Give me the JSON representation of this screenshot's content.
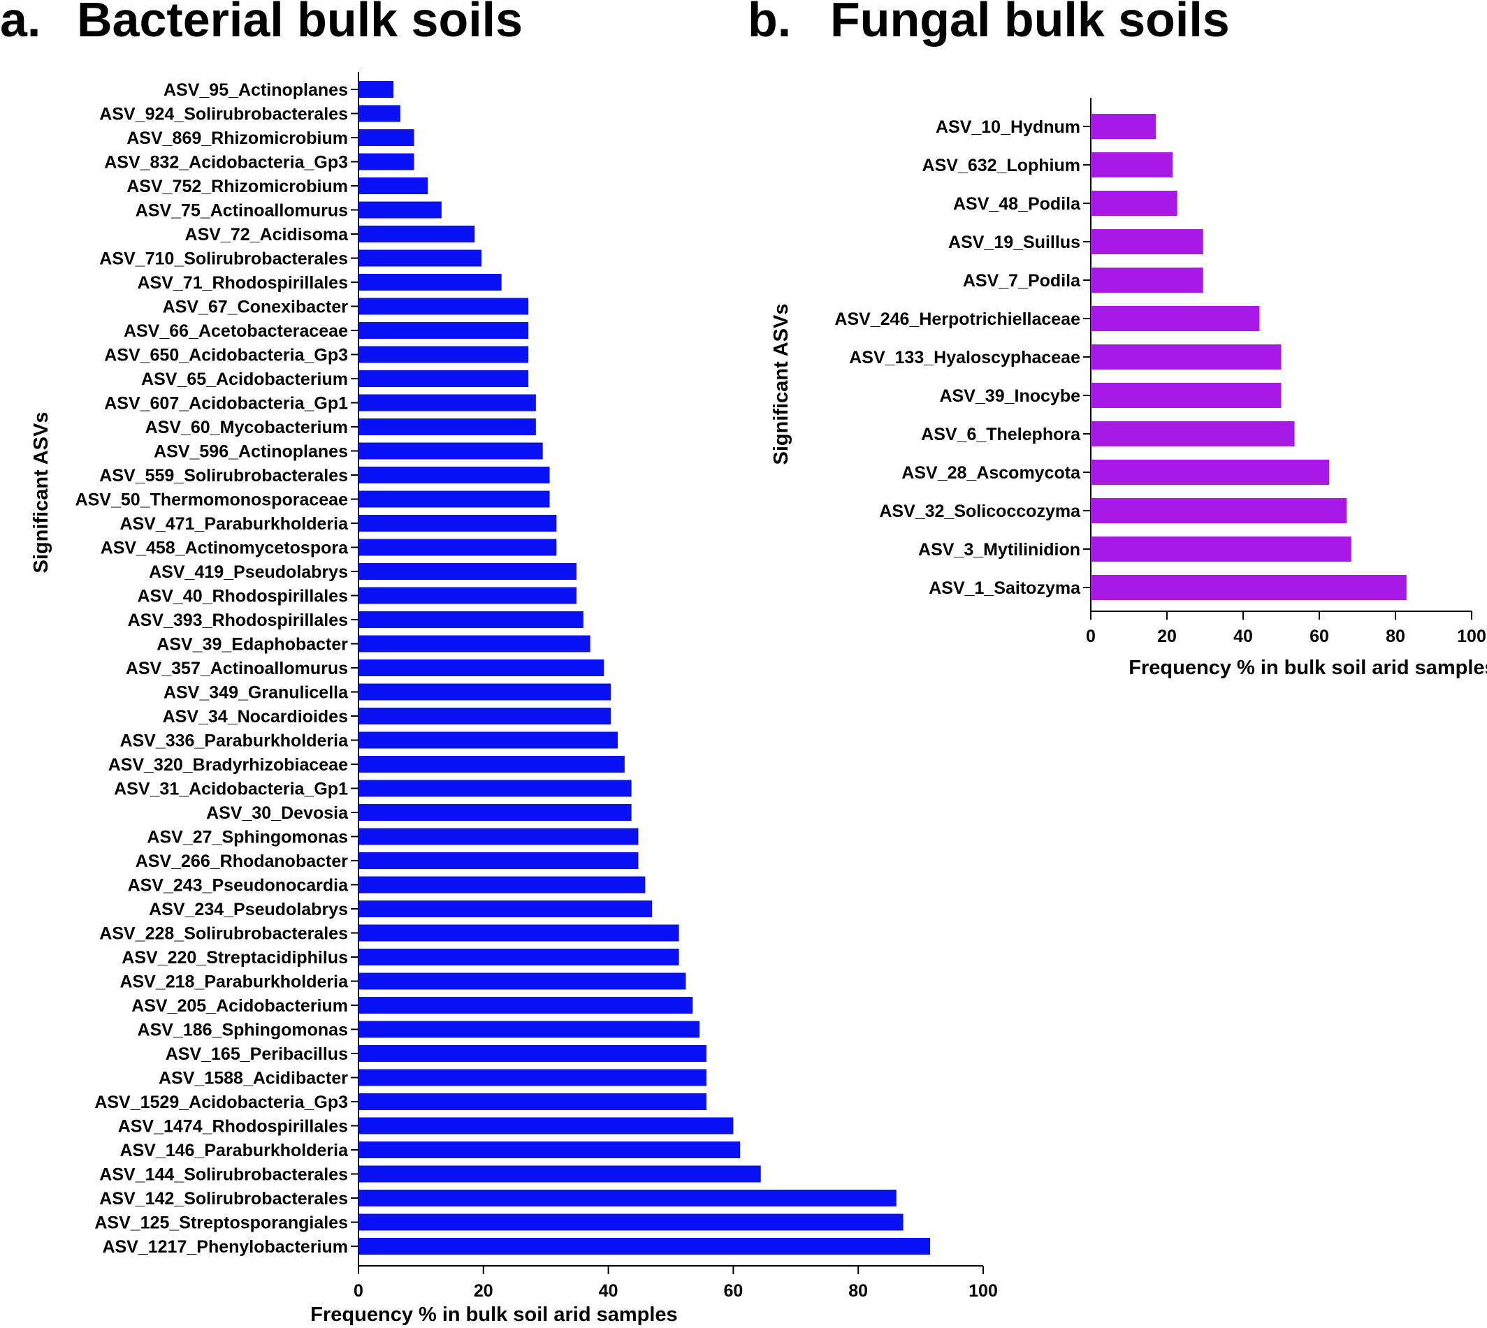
{
  "chart_data": [
    {
      "type": "bar",
      "orientation": "horizontal",
      "panel_label": "a.",
      "title": "Bacterial bulk soils",
      "xlabel": "Frequency % in bulk soil arid samples",
      "ylabel": "Significant  ASVs",
      "xlim": [
        0,
        100
      ],
      "xticks": [
        "0",
        "20",
        "40",
        "60",
        "80",
        "100"
      ],
      "color": "#0a12f5",
      "grid": false,
      "categories": [
        "ASV_95_Actinoplanes",
        "ASV_924_Solirubrobacterales",
        "ASV_869_Rhizomicrobium",
        "ASV_832_Acidobacteria_Gp3",
        "ASV_752_Rhizomicrobium",
        "ASV_75_Actinoallomurus",
        "ASV_72_Acidisoma",
        "ASV_710_Solirubrobacterales",
        "ASV_71_Rhodospirillales",
        "ASV_67_Conexibacter",
        "ASV_66_Acetobacteraceae",
        "ASV_650_Acidobacteria_Gp3",
        "ASV_65_Acidobacterium",
        "ASV_607_Acidobacteria_Gp1",
        "ASV_60_Mycobacterium",
        "ASV_596_Actinoplanes",
        "ASV_559_Solirubrobacterales",
        "ASV_50_Thermomonosporaceae",
        "ASV_471_Paraburkholderia",
        "ASV_458_Actinomycetospora",
        "ASV_419_Pseudolabrys",
        "ASV_40_Rhodospirillales",
        "ASV_393_Rhodospirillales",
        "ASV_39_Edaphobacter",
        "ASV_357_Actinoallomurus",
        "ASV_349_Granulicella",
        "ASV_34_Nocardioides",
        "ASV_336_Paraburkholderia",
        "ASV_320_Bradyrhizobiaceae",
        "ASV_31_Acidobacteria_Gp1",
        "ASV_30_Devosia",
        "ASV_27_Sphingomonas",
        "ASV_266_Rhodanobacter",
        "ASV_243_Pseudonocardia",
        "ASV_234_Pseudolabrys",
        "ASV_228_Solirubrobacterales",
        "ASV_220_Streptacidiphilus",
        "ASV_218_Paraburkholderia",
        "ASV_205_Acidobacterium",
        "ASV_186_Sphingomonas",
        "ASV_165_Peribacillus",
        "ASV_1588_Acidibacter",
        "ASV_1529_Acidobacteria_Gp3",
        "ASV_1474_Rhodospirillales",
        "ASV_146_Paraburkholderia",
        "ASV_144_Solirubrobacterales",
        "ASV_142_Solirubrobacterales",
        "ASV_125_Streptosporangiales",
        "ASV_1217_Phenylobacterium"
      ],
      "values": [
        5.6,
        6.7,
        8.9,
        8.9,
        11.1,
        13.3,
        18.6,
        19.7,
        22.9,
        27.2,
        27.2,
        27.2,
        27.2,
        28.4,
        28.4,
        29.5,
        30.6,
        30.6,
        31.7,
        31.7,
        34.9,
        34.9,
        36.0,
        37.1,
        39.3,
        40.4,
        40.4,
        41.5,
        42.6,
        43.7,
        43.7,
        44.8,
        44.8,
        45.9,
        47.0,
        51.3,
        51.3,
        52.4,
        53.5,
        54.6,
        55.7,
        55.7,
        55.7,
        60.0,
        61.1,
        64.4,
        86.1,
        87.2,
        91.5
      ]
    },
    {
      "type": "bar",
      "orientation": "horizontal",
      "panel_label": "b.",
      "title": "Fungal bulk soils",
      "xlabel": "Frequency % in bulk soil arid samples",
      "ylabel": "Significant  ASVs",
      "xlim": [
        0,
        100
      ],
      "xticks": [
        "0",
        "20",
        "40",
        "60",
        "80",
        "100"
      ],
      "color": "#a818e6",
      "grid": false,
      "categories": [
        "ASV_10_Hydnum",
        "ASV_632_Lophium",
        "ASV_48_Podila",
        "ASV_19_Suillus",
        "ASV_7_Podila",
        "ASV_246_Herpotrichiellaceae",
        "ASV_133_Hyaloscyphaceae",
        "ASV_39_Inocybe",
        "ASV_6_Thelephora",
        "ASV_28_Ascomycota",
        "ASV_32_Solicoccozyma",
        "ASV_3_Mytilinidion",
        "ASV_1_Saitozyma"
      ],
      "values": [
        17.1,
        21.5,
        22.7,
        29.5,
        29.5,
        44.3,
        50.0,
        50.0,
        53.5,
        62.6,
        67.2,
        68.4,
        82.9
      ]
    }
  ]
}
